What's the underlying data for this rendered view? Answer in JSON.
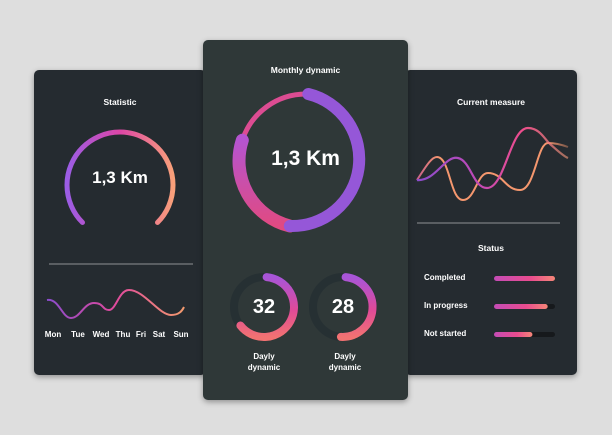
{
  "colors": {
    "background": "#dedede",
    "side_panel": "#252b30",
    "center_panel": "#2f3838",
    "purple": "#9b5de5",
    "pink": "#e0489e",
    "orange": "#f9a07a"
  },
  "statistic": {
    "title": "Statistic",
    "value": "1,3 Km",
    "days": [
      "Mon",
      "Tue",
      "Wed",
      "Thu",
      "Fri",
      "Sat",
      "Sun"
    ]
  },
  "monthly": {
    "title": "Monthly dynamic",
    "value": "1,3 Km",
    "daily": [
      {
        "value": "32",
        "label_line1": "Dayly",
        "label_line2": "dynamic",
        "progress": 0.63
      },
      {
        "value": "28",
        "label_line1": "Dayly",
        "label_line2": "dynamic",
        "progress": 0.5
      }
    ]
  },
  "current": {
    "title": "Current measure",
    "status_title": "Status",
    "status": [
      {
        "label": "Completed",
        "progress": 1.0
      },
      {
        "label": "In progress",
        "progress": 0.88
      },
      {
        "label": "Not started",
        "progress": 0.63
      }
    ]
  }
}
